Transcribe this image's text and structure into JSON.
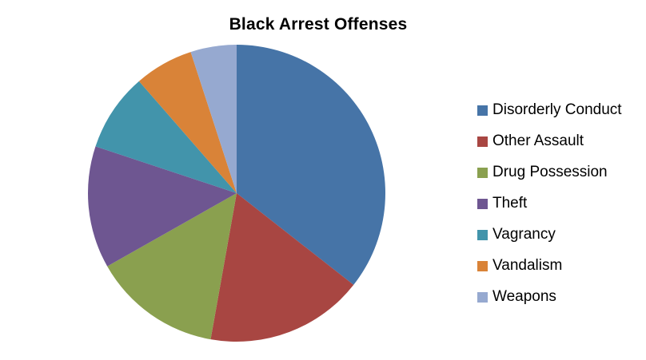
{
  "chart_data": {
    "type": "pie",
    "title": "Black Arrest Offenses",
    "categories": [
      "Disorderly Conduct",
      "Other Assault",
      "Drug Possession",
      "Theft",
      "Vagrancy",
      "Vandalism",
      "Weapons"
    ],
    "values": [
      35.6,
      17.2,
      14.0,
      13.3,
      8.5,
      6.4,
      5.0
    ],
    "unit": "percent_of_whole",
    "colors": [
      "#4674A7",
      "#A84642",
      "#8AA04F",
      "#6E5691",
      "#4294AB",
      "#D98338",
      "#96A9D0"
    ],
    "start_angle_deg": 0,
    "direction": "clockwise",
    "legend_position": "right",
    "background_color": "#FFFFFF",
    "title_color": "#000000"
  }
}
